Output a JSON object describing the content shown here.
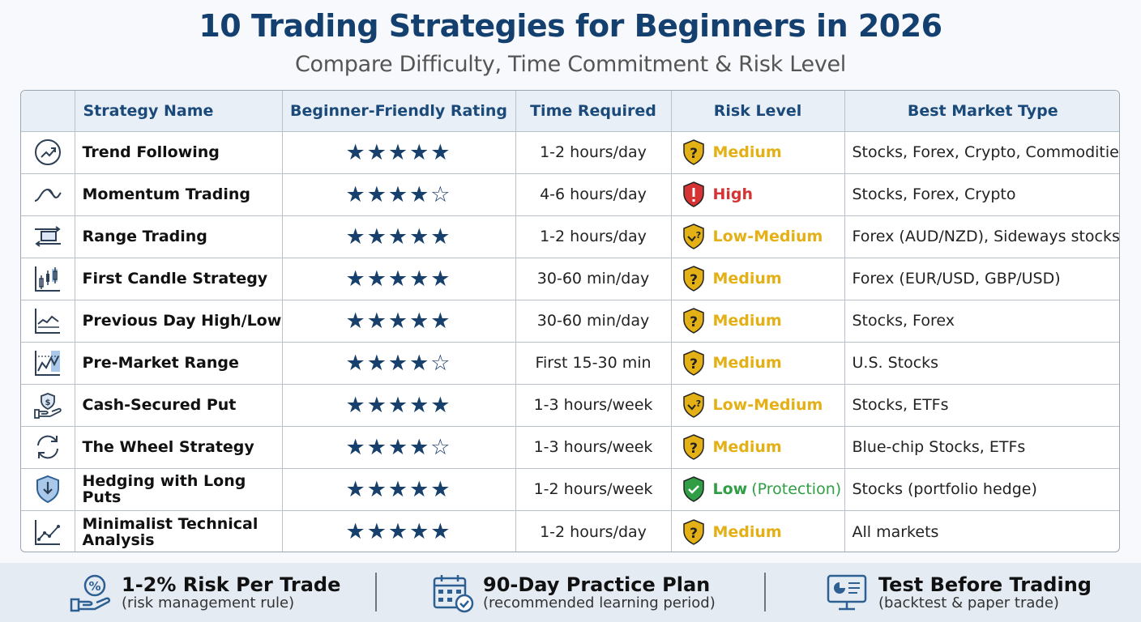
{
  "title": "10 Trading Strategies for Beginners in 2026",
  "subtitle": "Compare Difficulty, Time Commitment & Risk Level",
  "table": {
    "headers": [
      "Strategy Name",
      "Beginner-Friendly Rating",
      "Time Required",
      "Risk Level",
      "Best Market Type"
    ],
    "rows": [
      {
        "icon": "trend-up-icon",
        "name": "Trend Following",
        "stars": 5,
        "rating_text": "★★★★★",
        "time": "1-2 hours/day",
        "risk": "Medium",
        "risk_note": "",
        "risk_color": "#e3b015",
        "market": "Stocks, Forex, Crypto, Commodities"
      },
      {
        "icon": "wave-icon",
        "name": "Momentum Trading",
        "stars": 4,
        "rating_text": "★★★★☆",
        "time": "4-6 hours/day",
        "risk": "High",
        "risk_note": "",
        "risk_color": "#d63434",
        "market": "Stocks, Forex, Crypto"
      },
      {
        "icon": "range-arrows-icon",
        "name": "Range Trading",
        "stars": 5,
        "rating_text": "★★★★★",
        "time": "1-2 hours/day",
        "risk": "Low-Medium",
        "risk_note": "",
        "risk_color": "#e3b015",
        "market": "Forex (AUD/NZD), Sideways stocks"
      },
      {
        "icon": "candlestick-icon",
        "name": "First Candle Strategy",
        "stars": 5,
        "rating_text": "★★★★★",
        "time": "30-60 min/day",
        "risk": "Medium",
        "risk_note": "",
        "risk_color": "#e3b015",
        "market": "Forex (EUR/USD, GBP/USD)"
      },
      {
        "icon": "line-chart-icon",
        "name": "Previous Day High/Low",
        "stars": 5,
        "rating_text": "★★★★★",
        "time": "30-60 min/day",
        "risk": "Medium",
        "risk_note": "",
        "risk_color": "#e3b015",
        "market": "Stocks, Forex"
      },
      {
        "icon": "premarket-chart-icon",
        "name": "Pre-Market Range",
        "stars": 4,
        "rating_text": "★★★★☆",
        "time": "First 15-30 min",
        "risk": "Medium",
        "risk_note": "",
        "risk_color": "#e3b015",
        "market": "U.S. Stocks"
      },
      {
        "icon": "hand-dollar-icon",
        "name": "Cash-Secured Put",
        "stars": 5,
        "rating_text": "★★★★★",
        "time": "1-3 hours/week",
        "risk": "Low-Medium",
        "risk_note": "",
        "risk_color": "#e3b015",
        "market": "Stocks, ETFs"
      },
      {
        "icon": "cycle-arrows-icon",
        "name": "The Wheel Strategy",
        "stars": 4,
        "rating_text": "★★★★☆",
        "time": "1-3 hours/week",
        "risk": "Medium",
        "risk_note": "",
        "risk_color": "#e3b015",
        "market": "Blue-chip Stocks, ETFs"
      },
      {
        "icon": "shield-down-icon",
        "name": "Hedging with Long Puts",
        "stars": 5,
        "rating_text": "★★★★★",
        "time": "1-2 hours/week",
        "risk": "Low",
        "risk_note": "(Protection)",
        "risk_color": "#2f9e44",
        "market": "Stocks (portfolio hedge)"
      },
      {
        "icon": "scatter-trend-icon",
        "name": "Minimalist Technical Analysis",
        "stars": 5,
        "rating_text": "★★★★★",
        "time": "1-2 hours/day",
        "risk": "Medium",
        "risk_note": "",
        "risk_color": "#e3b015",
        "market": "All markets"
      }
    ]
  },
  "footer": [
    {
      "icon": "percent-hand-icon",
      "title": "1-2% Risk Per Trade",
      "subtitle": "(risk management rule)"
    },
    {
      "icon": "calendar-check-icon",
      "title": "90-Day Practice Plan",
      "subtitle": "(recommended learning period)"
    },
    {
      "icon": "monitor-chart-icon",
      "title": "Test Before Trading",
      "subtitle": "(backtest & paper trade)"
    }
  ],
  "colors": {
    "title": "#14406f",
    "header_text": "#1b4a7a",
    "star": "#17406c",
    "medium": "#e3b015",
    "high": "#d63434",
    "low": "#2f9e44",
    "icon_blue": "#2d5f93"
  }
}
